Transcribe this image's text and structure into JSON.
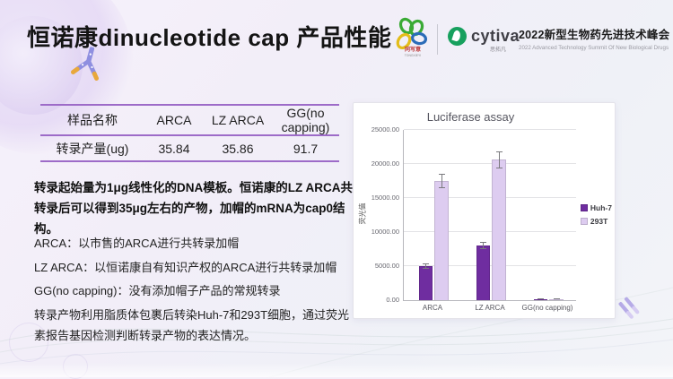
{
  "header": {
    "title": "恒诺康dinucleotide cap 产品性能",
    "logos": {
      "tongxieyi": {
        "name": "同写意",
        "sub": "TONGXIEYI"
      },
      "cytiva": {
        "name": "cytiva",
        "sub": "思拓凡"
      },
      "summit_title": "2022新型生物药先进技术峰会",
      "summit_sub": "2022 Advanced Technology Summit Of New Biological Drugs"
    }
  },
  "table": {
    "headers": [
      "样品名称",
      "ARCA",
      "LZ ARCA",
      "GG(no capping)"
    ],
    "row_label": "转录产量(ug)",
    "row_values": [
      "35.84",
      "35.86",
      "91.7"
    ]
  },
  "text": {
    "intro": "转录起始量为1μg线性化的DNA模板。恒诺康的LZ ARCA共转录后可以得到35μg左右的产物，加帽的mRNA为cap0结构。",
    "items": [
      "ARCA：以市售的ARCA进行共转录加帽",
      "LZ ARCA：以恒诺康自有知识产权的ARCA进行共转录加帽",
      "GG(no capping)：没有添加帽子产品的常规转录",
      "转录产物利用脂质体包裹后转染Huh-7和293T细胞，通过荧光素报告基因检测判断转录产物的表达情况。"
    ]
  },
  "chart_data": {
    "type": "bar",
    "title": "Luciferase assay",
    "ylabel": "荧光值",
    "xlabel": "",
    "categories": [
      "ARCA",
      "LZ ARCA",
      "GG(no capping)"
    ],
    "series": [
      {
        "name": "Huh-7",
        "color": "#6f2da0",
        "values": [
          5000,
          8000,
          150
        ],
        "errors": [
          350,
          500,
          60
        ]
      },
      {
        "name": "293T",
        "color": "#ddccf0",
        "values": [
          17500,
          20600,
          120
        ],
        "errors": [
          1100,
          1250,
          50
        ]
      }
    ],
    "ylim": [
      0,
      25000
    ],
    "ytick_step": 5000,
    "grid": true,
    "legend_position": "right",
    "error_bars": true
  },
  "colors": {
    "table_rule": "#9d6bc8",
    "bar_dark": "#6f2da0",
    "bar_light": "#ddccf0",
    "cytiva_green": "#17a05e",
    "background": "#f2eef8"
  }
}
